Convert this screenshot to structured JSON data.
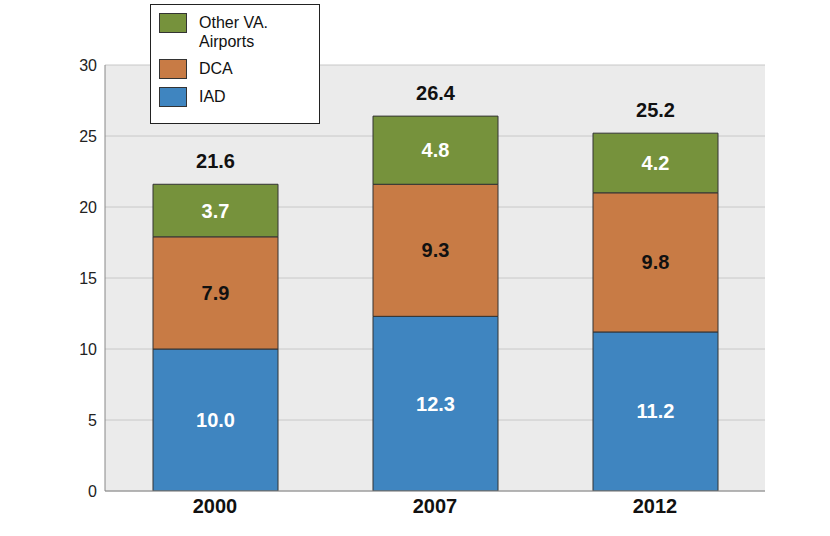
{
  "chart_data": {
    "type": "bar",
    "stacked": true,
    "categories": [
      "2000",
      "2007",
      "2012"
    ],
    "series": [
      {
        "name": "IAD",
        "color": "#3f85c0",
        "values": [
          10.0,
          12.3,
          11.2
        ],
        "value_labels": [
          "10.0",
          "12.3",
          "11.2"
        ]
      },
      {
        "name": "DCA",
        "color": "#c87b45",
        "values": [
          7.9,
          9.3,
          9.8
        ]
      },
      {
        "name": "Other VA. Airports",
        "color": "#76923c",
        "values": [
          3.7,
          4.8,
          4.2
        ]
      }
    ],
    "totals": [
      21.6,
      26.4,
      25.2
    ],
    "ylim": [
      0,
      30
    ],
    "yticks": [
      0,
      5,
      10,
      15,
      20,
      25,
      30
    ],
    "grid": true,
    "data_labels": true,
    "legend": "upper left"
  }
}
